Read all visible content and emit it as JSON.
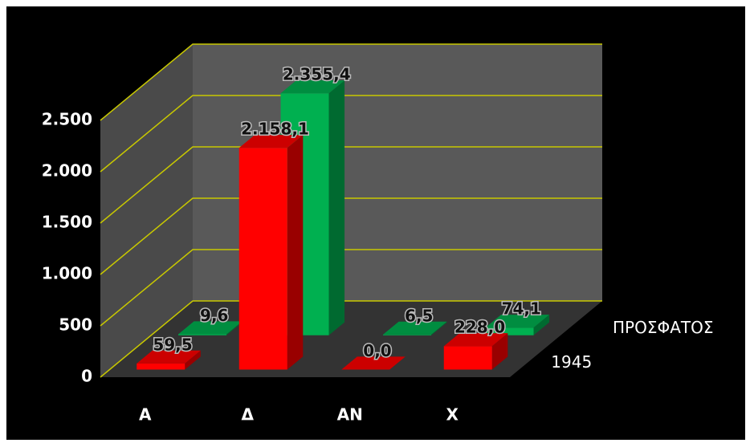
{
  "chart_data": {
    "type": "bar3d",
    "categories": [
      "Α",
      "Δ",
      "ΑΝ",
      "Χ"
    ],
    "series": [
      {
        "name": "1945",
        "color": "#ff0000",
        "values": [
          59.5,
          2158.1,
          0.0,
          228.0
        ],
        "value_labels": [
          "59,5",
          "2.158,1",
          "0,0",
          "228,0"
        ]
      },
      {
        "name": "ΠΡΟΣΦΑΤΟΣ",
        "color": "#00b050",
        "values": [
          9.6,
          2355.4,
          6.5,
          74.1
        ],
        "value_labels": [
          "9,6",
          "2.355,4",
          "6,5",
          "74,1"
        ]
      }
    ],
    "ylim": [
      0,
      2500
    ],
    "yticks": [
      0,
      500,
      {
        "value": 1000,
        "label": "1.000"
      },
      {
        "value": 1500,
        "label": "1.500"
      },
      {
        "value": 2000,
        "label": "2.000"
      },
      {
        "value": 2500,
        "label": "2.500"
      }
    ],
    "grid": true
  }
}
